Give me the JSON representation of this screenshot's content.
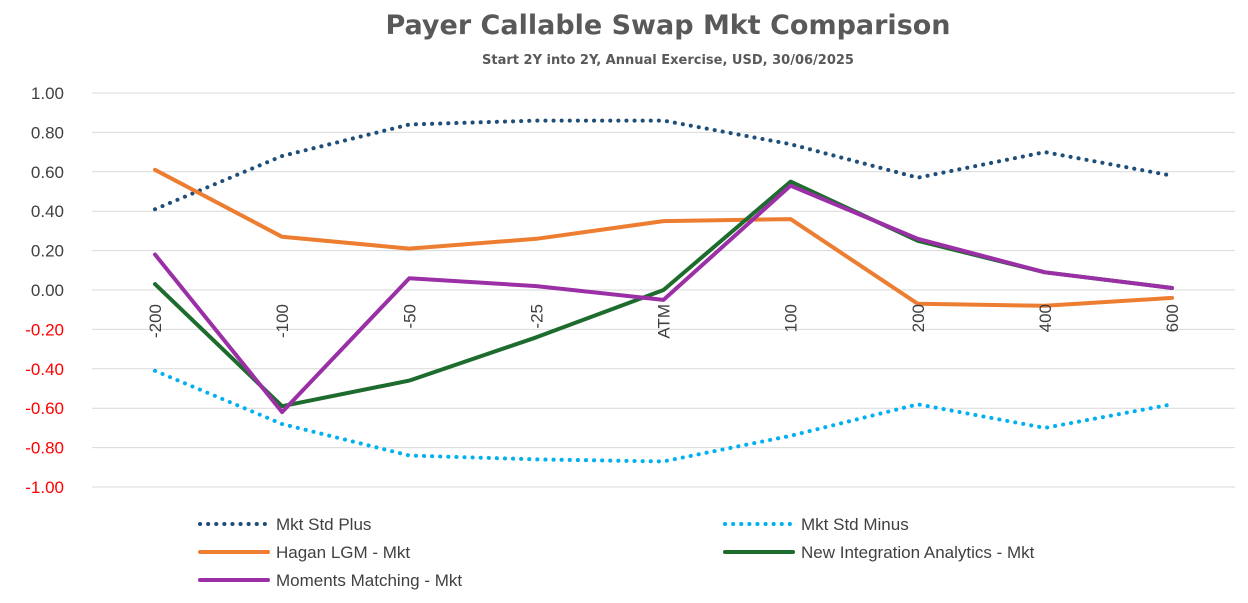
{
  "chart_data": {
    "type": "line",
    "title": "Payer Callable Swap Mkt Comparison",
    "subtitle": "Start 2Y into 2Y, Annual Exercise, USD,  30/06/2025",
    "categories": [
      "-200",
      "-100",
      "-50",
      "-25",
      "ATM",
      "100",
      "200",
      "400",
      "600"
    ],
    "ylim": [
      -1.0,
      1.0
    ],
    "yticks": [
      "1.00",
      "0.80",
      "0.60",
      "0.40",
      "0.20",
      "0.00",
      "-0.20",
      "-0.40",
      "-0.60",
      "-0.80",
      "-1.00"
    ],
    "ytick_values": [
      1.0,
      0.8,
      0.6,
      0.4,
      0.2,
      0.0,
      -0.2,
      -0.4,
      -0.6,
      -0.8,
      -1.0
    ],
    "positive_tick_color": "#404040",
    "negative_tick_color": "#ff0000",
    "grid": true,
    "legend_position": "bottom",
    "series": [
      {
        "name": "Mkt Std Plus",
        "color": "#1f4e79",
        "style": "dotted",
        "values": [
          0.41,
          0.68,
          0.84,
          0.86,
          0.86,
          0.74,
          0.57,
          0.7,
          0.58
        ]
      },
      {
        "name": "Mkt Std Minus",
        "color": "#00b0f0",
        "style": "dotted",
        "values": [
          -0.41,
          -0.68,
          -0.84,
          -0.86,
          -0.87,
          -0.74,
          -0.58,
          -0.7,
          -0.58
        ]
      },
      {
        "name": "Hagan LGM - Mkt",
        "color": "#ed7d31",
        "style": "solid",
        "values": [
          0.61,
          0.27,
          0.21,
          0.26,
          0.35,
          0.36,
          -0.07,
          -0.08,
          -0.04
        ]
      },
      {
        "name": "New Integration Analytics - Mkt",
        "color": "#1e6b2e",
        "style": "solid",
        "values": [
          0.03,
          -0.59,
          -0.46,
          -0.24,
          0.0,
          0.55,
          0.25,
          0.09,
          0.01
        ]
      },
      {
        "name": "Moments Matching - Mkt",
        "color": "#9b30a6",
        "style": "solid",
        "values": [
          0.18,
          -0.62,
          0.06,
          0.02,
          -0.05,
          0.53,
          0.26,
          0.09,
          0.01
        ]
      }
    ]
  }
}
